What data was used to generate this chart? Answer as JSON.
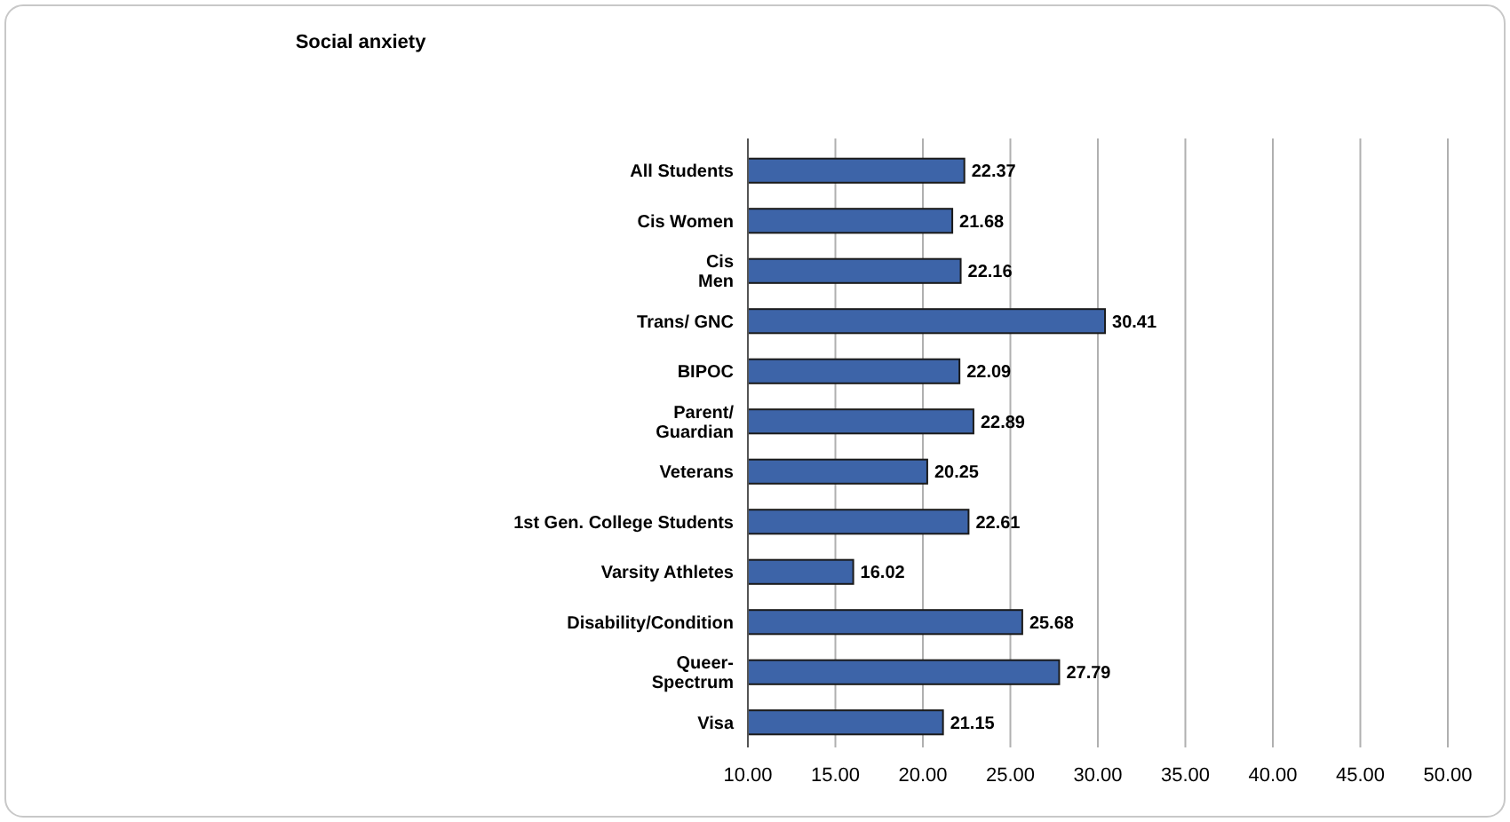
{
  "chart_data": {
    "type": "bar",
    "orientation": "horizontal",
    "title": "Social anxiety",
    "categories": [
      "All Students",
      "Cis Women",
      "Cis\nMen",
      "Trans/ GNC",
      "BIPOC",
      "Parent/\nGuardian",
      "Veterans",
      "1st Gen. College Students",
      "Varsity Athletes",
      "Disability/Condition",
      "Queer-\nSpectrum",
      "Visa"
    ],
    "values": [
      22.37,
      21.68,
      22.16,
      30.41,
      22.09,
      22.89,
      20.25,
      22.61,
      16.02,
      25.68,
      27.79,
      21.15
    ],
    "color": "#3d64a8",
    "xlim": [
      10,
      50
    ],
    "xticks": [
      {
        "value": 10,
        "label": "10.00"
      },
      {
        "value": 15,
        "label": "15.00"
      },
      {
        "value": 20,
        "label": "20.00"
      },
      {
        "value": 25,
        "label": "25.00"
      },
      {
        "value": 30,
        "label": "30.00"
      },
      {
        "value": 35,
        "label": "35.00"
      },
      {
        "value": 40,
        "label": "40.00"
      },
      {
        "value": 45,
        "label": "45.00"
      },
      {
        "value": 50,
        "label": "50.00"
      }
    ],
    "grid": "x",
    "data_labels": true
  }
}
